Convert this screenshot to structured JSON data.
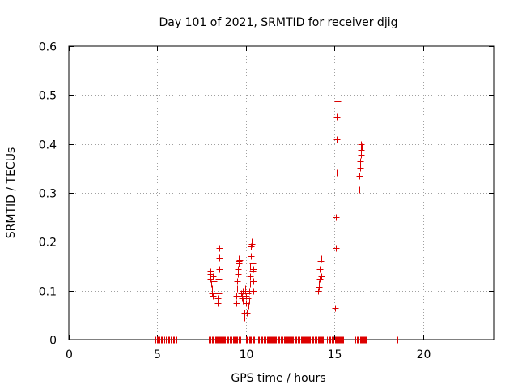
{
  "chart_data": {
    "type": "scatter",
    "title": "Day 101 of 2021, SRMTID for receiver djig",
    "xlabel": "GPS time / hours",
    "ylabel": "SRMTID / TECUs",
    "xlim": [
      0,
      24
    ],
    "ylim": [
      0,
      0.6
    ],
    "xticks": [
      0,
      5,
      10,
      15,
      20
    ],
    "yticks": [
      0,
      0.1,
      0.2,
      0.3,
      0.4,
      0.5,
      0.6
    ],
    "xtick_labels": [
      "0",
      "5",
      "10",
      "15",
      "20"
    ],
    "ytick_labels": [
      "0",
      "0.1",
      "0.2",
      "0.3",
      "0.4",
      "0.5",
      "0.6"
    ],
    "grid": true,
    "marker": "+",
    "color": "#dd0000",
    "series": [
      {
        "name": "SRMTID",
        "points": [
          [
            7.98,
            0.14
          ],
          [
            8.0,
            0.135
          ],
          [
            8.02,
            0.125
          ],
          [
            8.05,
            0.115
          ],
          [
            8.08,
            0.105
          ],
          [
            8.1,
            0.095
          ],
          [
            8.12,
            0.09
          ],
          [
            8.15,
            0.13
          ],
          [
            8.18,
            0.12
          ],
          [
            8.4,
            0.075
          ],
          [
            8.42,
            0.085
          ],
          [
            8.44,
            0.095
          ],
          [
            8.46,
            0.125
          ],
          [
            8.48,
            0.145
          ],
          [
            8.5,
            0.168
          ],
          [
            8.52,
            0.188
          ],
          [
            9.45,
            0.075
          ],
          [
            9.48,
            0.09
          ],
          [
            9.5,
            0.105
          ],
          [
            9.52,
            0.12
          ],
          [
            9.54,
            0.135
          ],
          [
            9.56,
            0.145
          ],
          [
            9.58,
            0.155
          ],
          [
            9.6,
            0.16
          ],
          [
            9.62,
            0.165
          ],
          [
            9.64,
            0.162
          ],
          [
            9.66,
            0.15
          ],
          [
            9.75,
            0.095
          ],
          [
            9.78,
            0.085
          ],
          [
            9.8,
            0.09
          ],
          [
            9.82,
            0.1
          ],
          [
            9.85,
            0.08
          ],
          [
            9.88,
            0.095
          ],
          [
            9.9,
            0.055
          ],
          [
            9.92,
            0.045
          ],
          [
            9.95,
            0.105
          ],
          [
            9.98,
            0.1
          ],
          [
            10.0,
            0.09
          ],
          [
            10.02,
            0.075
          ],
          [
            10.05,
            0.055
          ],
          [
            10.08,
            0.085
          ],
          [
            10.1,
            0.095
          ],
          [
            10.15,
            0.07
          ],
          [
            10.18,
            0.08
          ],
          [
            10.2,
            0.1
          ],
          [
            10.22,
            0.115
          ],
          [
            10.24,
            0.13
          ],
          [
            10.26,
            0.15
          ],
          [
            10.28,
            0.17
          ],
          [
            10.3,
            0.19
          ],
          [
            10.32,
            0.2
          ],
          [
            10.34,
            0.195
          ],
          [
            10.36,
            0.155
          ],
          [
            10.38,
            0.14
          ],
          [
            10.4,
            0.12
          ],
          [
            10.42,
            0.1
          ],
          [
            10.44,
            0.145
          ],
          [
            14.1,
            0.1
          ],
          [
            14.12,
            0.108
          ],
          [
            14.14,
            0.115
          ],
          [
            14.16,
            0.125
          ],
          [
            14.18,
            0.145
          ],
          [
            14.2,
            0.16
          ],
          [
            14.22,
            0.175
          ],
          [
            14.24,
            0.165
          ],
          [
            14.26,
            0.13
          ],
          [
            15.05,
            0.065
          ],
          [
            15.07,
            0.188
          ],
          [
            15.09,
            0.25
          ],
          [
            15.11,
            0.342
          ],
          [
            15.13,
            0.41
          ],
          [
            15.15,
            0.455
          ],
          [
            15.17,
            0.488
          ],
          [
            15.19,
            0.507
          ],
          [
            16.4,
            0.307
          ],
          [
            16.42,
            0.335
          ],
          [
            16.44,
            0.352
          ],
          [
            16.46,
            0.365
          ],
          [
            16.48,
            0.378
          ],
          [
            16.5,
            0.388
          ],
          [
            16.52,
            0.4
          ],
          [
            16.54,
            0.395
          ]
        ]
      }
    ],
    "zero_runs": [
      [
        4.9,
        5.4
      ],
      [
        5.5,
        5.8
      ],
      [
        5.9,
        6.1
      ],
      [
        7.9,
        8.3
      ],
      [
        8.3,
        9.4
      ],
      [
        9.4,
        9.7
      ],
      [
        10.0,
        10.5
      ],
      [
        10.7,
        14.4
      ],
      [
        14.6,
        15.5
      ],
      [
        16.2,
        16.8
      ],
      [
        18.5,
        18.6
      ]
    ]
  }
}
